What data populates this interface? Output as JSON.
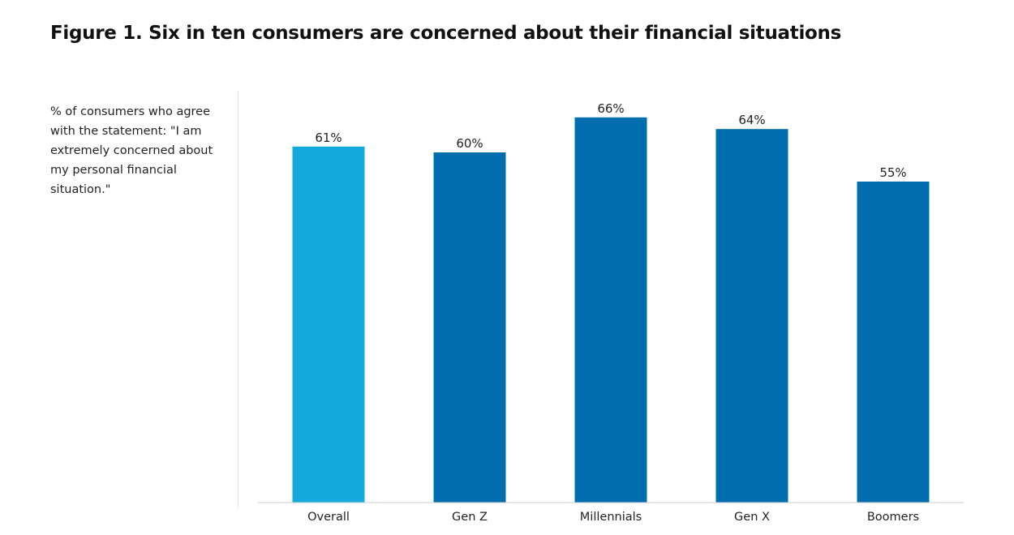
{
  "header": {
    "title": "Figure 1. Six in ten consumers are concerned about their financial situations"
  },
  "subtitle": "% of consumers who agree with the statement: \"I am extremely concerned about my personal financial situation.\"",
  "chart_data": {
    "type": "bar",
    "title": "Figure 1. Six in ten consumers are concerned about their financial situations",
    "subtitle": "% of consumers who agree with the statement: \"I am extremely concerned about my personal financial situation.\"",
    "categories": [
      "Overall",
      "Gen Z",
      "Millennials",
      "Gen X",
      "Boomers"
    ],
    "values": [
      61,
      60,
      66,
      64,
      55
    ],
    "value_labels": [
      "61%",
      "60%",
      "66%",
      "64%",
      "55%"
    ],
    "xlabel": "",
    "ylabel": "",
    "ylim": [
      0,
      100
    ],
    "grid": false,
    "legend": "none",
    "colors": {
      "highlight": "#14A9DC",
      "default": "#006DAE",
      "axis": "#cccccc"
    },
    "bar_colors": [
      "#14A9DC",
      "#006DAE",
      "#006DAE",
      "#006DAE",
      "#006DAE"
    ]
  }
}
